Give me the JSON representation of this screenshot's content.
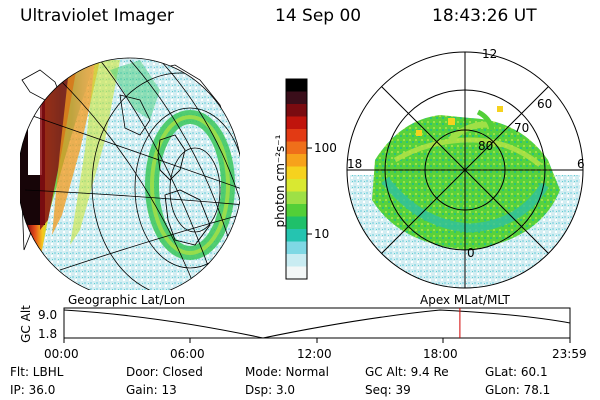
{
  "header": {
    "instrument": "Ultraviolet Imager",
    "date": "14 Sep 00",
    "time": "18:43:26 UT"
  },
  "colorbar": {
    "label": "photon cm⁻²s⁻¹",
    "ticks": [
      "100",
      "10"
    ],
    "colors": [
      "#000000",
      "#3a0e1a",
      "#7a0b10",
      "#c0140c",
      "#e23a14",
      "#ef6f1a",
      "#f7a21b",
      "#f6d21e",
      "#d9e831",
      "#9ee046",
      "#53cf38",
      "#1fc06a",
      "#25c4b0",
      "#7fd8e4",
      "#c9ecf2",
      "#f3f7f7"
    ]
  },
  "left_map": {
    "projection": "Geographic Lat/Lon"
  },
  "right_map": {
    "projection": "Apex MLat/MLT",
    "mlt_labels": {
      "top": "12",
      "right": "6",
      "bottom": "0",
      "left": "18"
    },
    "lat_labels": [
      "60",
      "70",
      "80"
    ]
  },
  "altitude_plot": {
    "ylabel": "GC Alt",
    "yticks": [
      "9.0",
      "1.8"
    ],
    "xticks": [
      "00:00",
      "06:00",
      "12:00",
      "18:00",
      "23:59"
    ],
    "current_time_fraction": 0.7825
  },
  "info": {
    "filter": "Flt: LBHL",
    "door": "Door: Closed",
    "mode": "Mode: Normal",
    "gc_alt": "GC Alt: 9.4 Re",
    "glat": "GLat:  60.1",
    "ip": "IP: 36.0",
    "gain": "Gain: 13",
    "dsp": "Dsp:    3.0",
    "seq": "Seq: 39",
    "glon": "GLon:  78.1"
  }
}
